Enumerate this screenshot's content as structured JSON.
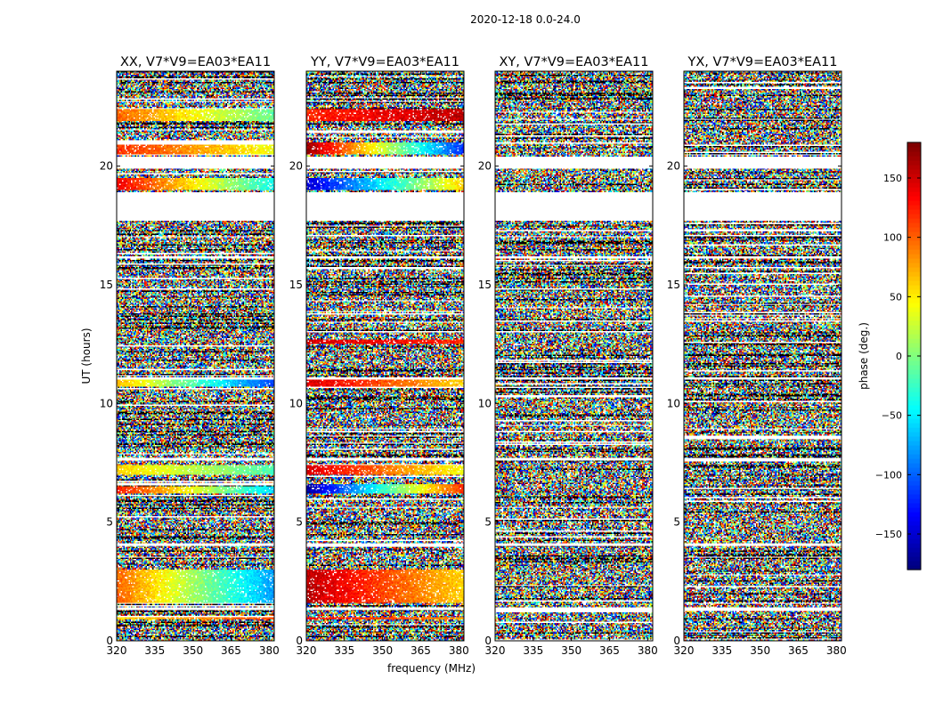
{
  "figure_title": "2020-12-18 0.0-24.0",
  "chart_data": [
    {
      "type": "heatmap",
      "title": "XX, V7*V9=EA03*EA11",
      "xlabel": "",
      "ylabel": "UT (hours)",
      "xlim": [
        320,
        382
      ],
      "ylim": [
        0,
        24
      ],
      "xticks": [
        320,
        335,
        350,
        365,
        380
      ],
      "yticks": [
        0,
        5,
        10,
        15,
        20
      ],
      "value_range": [
        -180,
        180
      ],
      "blank_time_ranges": [
        [
          17.7,
          18.9
        ],
        [
          19.9,
          20.4
        ],
        [
          20.9,
          21.1
        ],
        [
          16.1,
          16.2
        ],
        [
          11.0,
          11.1
        ],
        [
          7.6,
          7.7
        ],
        [
          4.0,
          4.1
        ],
        [
          1.3,
          1.4
        ]
      ],
      "coherent_bands": [
        {
          "t": [
            0.9,
            1.0
          ],
          "phase_start": 60,
          "phase_end": 110
        },
        {
          "t": [
            1.6,
            3.0
          ],
          "phase_start": 100,
          "phase_end": -80
        },
        {
          "t": [
            6.2,
            6.5
          ],
          "phase_start": 130,
          "phase_end": -60
        },
        {
          "t": [
            7.0,
            7.4
          ],
          "phase_start": 60,
          "phase_end": -20
        },
        {
          "t": [
            10.7,
            11.0
          ],
          "phase_start": 70,
          "phase_end": -110
        },
        {
          "t": [
            19.0,
            19.5
          ],
          "phase_start": 140,
          "phase_end": -40
        },
        {
          "t": [
            20.5,
            20.9
          ],
          "phase_start": 120,
          "phase_end": 40
        },
        {
          "t": [
            21.9,
            22.4
          ],
          "phase_start": 100,
          "phase_end": -10
        }
      ]
    },
    {
      "type": "heatmap",
      "title": "YY, V7*V9=EA03*EA11",
      "xlabel": "frequency (MHz)",
      "ylabel": "",
      "xlim": [
        320,
        382
      ],
      "ylim": [
        0,
        24
      ],
      "xticks": [
        320,
        335,
        350,
        365,
        380
      ],
      "yticks": [
        0,
        5,
        10,
        15,
        20
      ],
      "value_range": [
        -180,
        180
      ],
      "blank_time_ranges": [
        [
          17.7,
          18.9
        ],
        [
          19.9,
          20.4
        ],
        [
          16.1,
          16.2
        ],
        [
          11.0,
          11.1
        ],
        [
          7.6,
          7.7
        ],
        [
          4.0,
          4.1
        ],
        [
          1.3,
          1.4
        ]
      ],
      "coherent_bands": [
        {
          "t": [
            0.9,
            1.0
          ],
          "phase_start": 140,
          "phase_end": 80
        },
        {
          "t": [
            1.6,
            3.0
          ],
          "phase_start": 160,
          "phase_end": 60
        },
        {
          "t": [
            6.2,
            6.6
          ],
          "phase_start": -170,
          "phase_end": 120
        },
        {
          "t": [
            7.0,
            7.4
          ],
          "phase_start": 150,
          "phase_end": 40
        },
        {
          "t": [
            10.7,
            11.0
          ],
          "phase_start": 150,
          "phase_end": 60
        },
        {
          "t": [
            12.5,
            12.7
          ],
          "phase_start": 150,
          "phase_end": 120
        },
        {
          "t": [
            19.0,
            19.5
          ],
          "phase_start": -150,
          "phase_end": 60
        },
        {
          "t": [
            20.5,
            21.0
          ],
          "phase_start": 170,
          "phase_end": -120
        },
        {
          "t": [
            21.9,
            22.4
          ],
          "phase_start": 120,
          "phase_end": 160
        }
      ]
    },
    {
      "type": "heatmap",
      "title": "XY, V7*V9=EA03*EA11",
      "xlabel": "",
      "ylabel": "",
      "xlim": [
        320,
        382
      ],
      "ylim": [
        0,
        24
      ],
      "xticks": [
        320,
        335,
        350,
        365,
        380
      ],
      "yticks": [
        0,
        5,
        10,
        15,
        20
      ],
      "value_range": [
        -180,
        180
      ],
      "blank_time_ranges": [
        [
          17.7,
          18.9
        ],
        [
          19.9,
          20.4
        ],
        [
          16.1,
          16.2
        ],
        [
          11.0,
          11.1
        ],
        [
          7.6,
          7.7
        ],
        [
          4.0,
          4.1
        ],
        [
          1.3,
          1.4
        ]
      ],
      "coherent_bands": []
    },
    {
      "type": "heatmap",
      "title": "YX, V7*V9=EA03*EA11",
      "xlabel": "",
      "ylabel": "",
      "xlim": [
        320,
        382
      ],
      "ylim": [
        0,
        24
      ],
      "xticks": [
        320,
        335,
        350,
        365,
        380
      ],
      "yticks": [
        0,
        5,
        10,
        15,
        20
      ],
      "value_range": [
        -180,
        180
      ],
      "blank_time_ranges": [
        [
          17.7,
          18.9
        ],
        [
          19.9,
          20.4
        ],
        [
          16.1,
          16.2
        ],
        [
          11.0,
          11.1
        ],
        [
          7.6,
          7.7
        ],
        [
          4.0,
          4.1
        ],
        [
          1.3,
          1.4
        ]
      ],
      "coherent_bands": []
    }
  ],
  "colorbar": {
    "label": "phase (deg.)",
    "range": [
      -180,
      180
    ],
    "ticks": [
      -150,
      -100,
      -50,
      0,
      50,
      100,
      150
    ],
    "tick_labels": [
      "−150",
      "−100",
      "−50",
      "0",
      "50",
      "100",
      "150"
    ]
  }
}
